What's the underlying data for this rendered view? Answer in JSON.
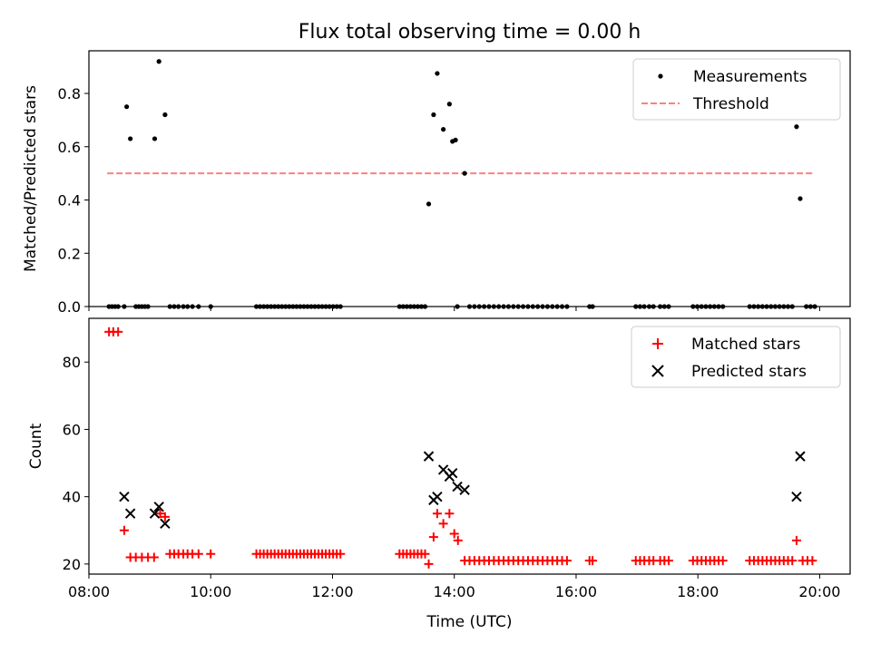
{
  "chart_data": [
    {
      "type": "scatter",
      "title": "Flux total observing time = 0.00 h",
      "xlabel": "",
      "ylabel": "Matched/Predicted stars",
      "xlim": [
        8.0,
        20.5
      ],
      "ylim": [
        0,
        0.96
      ],
      "yticks": [
        0.0,
        0.2,
        0.4,
        0.6,
        0.8
      ],
      "ytick_labels": [
        "0.0",
        "0.2",
        "0.4",
        "0.6",
        "0.8"
      ],
      "legend_position": "top-right",
      "threshold": {
        "name": "Threshold",
        "value": 0.5,
        "x_range": [
          8.3,
          19.9
        ],
        "color": "#ff7f7f"
      },
      "series": [
        {
          "name": "Measurements",
          "color": "#000000",
          "x": [
            8.33,
            8.38,
            8.43,
            8.48,
            8.58,
            8.62,
            8.68,
            8.77,
            8.82,
            8.87,
            8.92,
            8.97,
            9.08,
            9.15,
            9.25,
            9.33,
            9.4,
            9.47,
            9.55,
            9.62,
            9.7,
            9.8,
            10.0,
            10.75,
            10.81,
            10.87,
            10.93,
            10.99,
            11.05,
            11.11,
            11.17,
            11.23,
            11.29,
            11.35,
            11.41,
            11.47,
            11.53,
            11.59,
            11.65,
            11.71,
            11.77,
            11.83,
            11.89,
            11.95,
            12.01,
            12.07,
            12.13,
            13.1,
            13.16,
            13.22,
            13.28,
            13.34,
            13.4,
            13.46,
            13.52,
            13.58,
            13.66,
            13.72,
            13.82,
            13.92,
            13.97,
            14.02,
            14.05,
            14.17,
            14.25,
            14.33,
            14.41,
            14.49,
            14.57,
            14.65,
            14.73,
            14.81,
            14.89,
            14.97,
            15.05,
            15.13,
            15.21,
            15.29,
            15.37,
            15.45,
            15.53,
            15.61,
            15.69,
            15.77,
            15.85,
            16.22,
            16.27,
            16.98,
            17.05,
            17.12,
            17.2,
            17.27,
            17.38,
            17.45,
            17.52,
            17.92,
            17.99,
            18.06,
            18.13,
            18.2,
            18.27,
            18.34,
            18.41,
            18.85,
            18.92,
            18.99,
            19.06,
            19.13,
            19.2,
            19.27,
            19.34,
            19.41,
            19.48,
            19.55,
            19.62,
            19.68,
            19.78,
            19.85,
            19.92
          ],
          "y": [
            0,
            0,
            0,
            0,
            0,
            0.75,
            0.63,
            0,
            0,
            0,
            0,
            0,
            0.63,
            0.92,
            0.72,
            0,
            0,
            0,
            0,
            0,
            0,
            0,
            0,
            0,
            0,
            0,
            0,
            0,
            0,
            0,
            0,
            0,
            0,
            0,
            0,
            0,
            0,
            0,
            0,
            0,
            0,
            0,
            0,
            0,
            0,
            0,
            0,
            0,
            0,
            0,
            0,
            0,
            0,
            0,
            0,
            0.385,
            0.72,
            0.875,
            0.665,
            0.76,
            0.62,
            0.625,
            0,
            0.5,
            0,
            0,
            0,
            0,
            0,
            0,
            0,
            0,
            0,
            0,
            0,
            0,
            0,
            0,
            0,
            0,
            0,
            0,
            0,
            0,
            0,
            0,
            0,
            0,
            0,
            0,
            0,
            0,
            0,
            0,
            0,
            0,
            0,
            0,
            0,
            0,
            0,
            0,
            0,
            0,
            0,
            0,
            0,
            0,
            0,
            0,
            0,
            0,
            0,
            0,
            0.675,
            0.405,
            0,
            0,
            0
          ]
        }
      ]
    },
    {
      "type": "scatter",
      "title": "",
      "xlabel": "Time (UTC)",
      "ylabel": "Count",
      "xlim": [
        8.0,
        20.5
      ],
      "ylim": [
        17,
        93
      ],
      "yticks": [
        20,
        40,
        60,
        80
      ],
      "ytick_labels": [
        "20",
        "40",
        "60",
        "80"
      ],
      "xticks": [
        8,
        10,
        12,
        14,
        16,
        18,
        20
      ],
      "xtick_labels": [
        "08:00",
        "10:00",
        "12:00",
        "14:00",
        "16:00",
        "18:00",
        "20:00"
      ],
      "legend_position": "top-right",
      "series": [
        {
          "name": "Matched stars",
          "color": "#ff0000",
          "marker": "+",
          "x": [
            8.33,
            8.4,
            8.48,
            8.58,
            8.68,
            8.77,
            8.87,
            8.97,
            9.07,
            9.17,
            9.25,
            9.33,
            9.4,
            9.47,
            9.55,
            9.62,
            9.7,
            9.8,
            10.0,
            10.75,
            10.81,
            10.87,
            10.93,
            10.99,
            11.05,
            11.11,
            11.17,
            11.23,
            11.29,
            11.35,
            11.41,
            11.47,
            11.53,
            11.59,
            11.65,
            11.71,
            11.77,
            11.83,
            11.89,
            11.95,
            12.01,
            12.07,
            12.13,
            13.1,
            13.16,
            13.22,
            13.28,
            13.34,
            13.4,
            13.46,
            13.52,
            13.58,
            13.66,
            13.72,
            13.82,
            13.92,
            14.0,
            14.06,
            14.17,
            14.25,
            14.33,
            14.41,
            14.49,
            14.57,
            14.65,
            14.73,
            14.81,
            14.89,
            14.97,
            15.05,
            15.13,
            15.21,
            15.29,
            15.37,
            15.45,
            15.53,
            15.61,
            15.69,
            15.77,
            15.85,
            16.22,
            16.27,
            16.98,
            17.05,
            17.12,
            17.2,
            17.27,
            17.38,
            17.45,
            17.52,
            17.92,
            17.99,
            18.06,
            18.13,
            18.2,
            18.27,
            18.34,
            18.41,
            18.85,
            18.92,
            18.99,
            19.06,
            19.13,
            19.2,
            19.27,
            19.34,
            19.41,
            19.48,
            19.55,
            19.62,
            19.72,
            19.8,
            19.88
          ],
          "y": [
            89,
            89,
            89,
            30,
            22,
            22,
            22,
            22,
            22,
            35,
            34,
            23,
            23,
            23,
            23,
            23,
            23,
            23,
            23,
            23,
            23,
            23,
            23,
            23,
            23,
            23,
            23,
            23,
            23,
            23,
            23,
            23,
            23,
            23,
            23,
            23,
            23,
            23,
            23,
            23,
            23,
            23,
            23,
            23,
            23,
            23,
            23,
            23,
            23,
            23,
            23,
            20,
            28,
            35,
            32,
            35,
            29,
            27,
            21,
            21,
            21,
            21,
            21,
            21,
            21,
            21,
            21,
            21,
            21,
            21,
            21,
            21,
            21,
            21,
            21,
            21,
            21,
            21,
            21,
            21,
            21,
            21,
            21,
            21,
            21,
            21,
            21,
            21,
            21,
            21,
            21,
            21,
            21,
            21,
            21,
            21,
            21,
            21,
            21,
            21,
            21,
            21,
            21,
            21,
            21,
            21,
            21,
            21,
            21,
            27,
            21,
            21,
            21
          ]
        },
        {
          "name": "Predicted stars",
          "color": "#000000",
          "marker": "x",
          "x": [
            8.58,
            8.68,
            9.08,
            9.15,
            9.25,
            13.58,
            13.66,
            13.72,
            13.82,
            13.92,
            13.97,
            14.05,
            14.17,
            19.62,
            19.68
          ],
          "y": [
            40,
            35,
            35,
            37,
            32,
            52,
            39,
            40,
            48,
            46,
            47,
            43,
            42,
            40,
            52
          ]
        }
      ]
    }
  ]
}
